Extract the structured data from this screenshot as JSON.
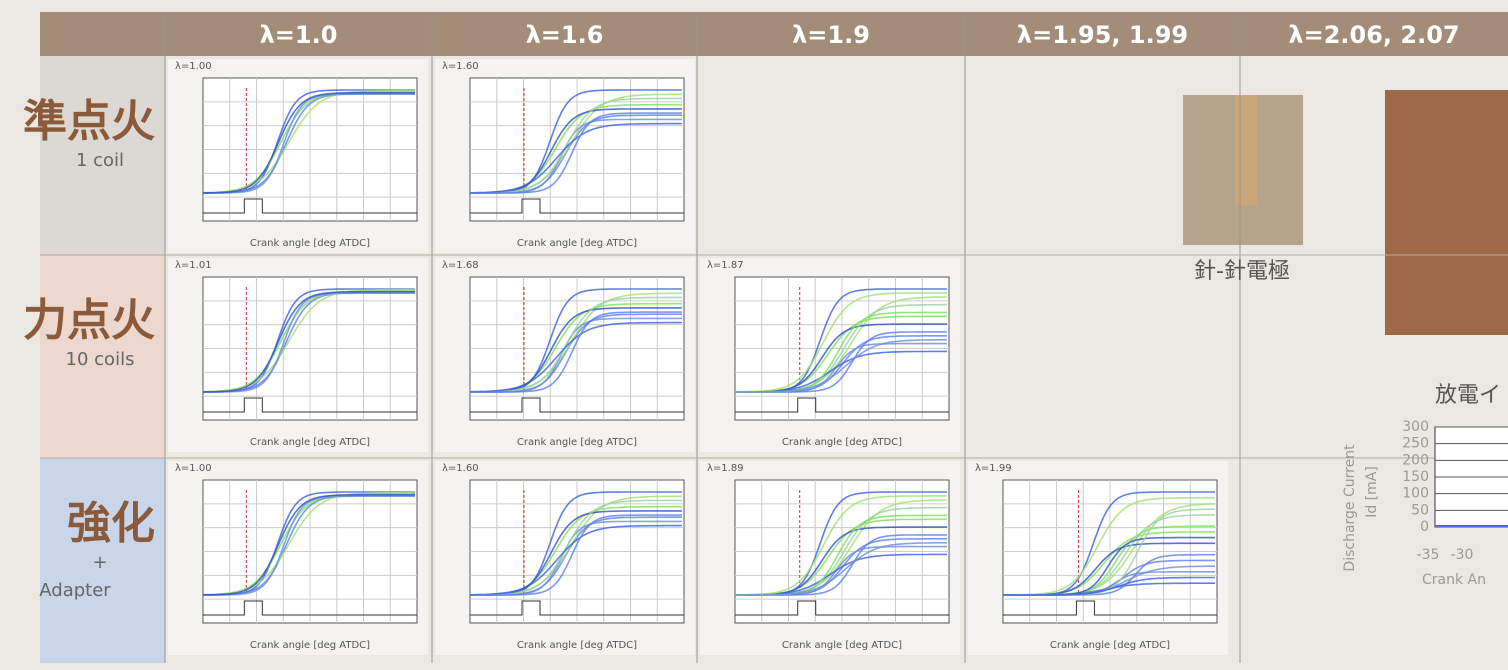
{
  "header": {
    "columns": [
      "λ=1.0",
      "λ=1.6",
      "λ=1.9",
      "λ=1.95, 1.99",
      "λ=2.06, 2.07"
    ]
  },
  "rows": [
    {
      "label": "準点火",
      "sublabel": "1 coil",
      "panels": [
        "λ=1.00",
        "λ=1.60",
        null,
        null
      ]
    },
    {
      "label": "力点火",
      "sublabel": "10 coils",
      "panels": [
        "λ=1.01",
        "λ=1.68",
        "λ=1.87",
        null
      ]
    },
    {
      "label": "強化",
      "sublabel": "+",
      "sublabel2": "Adapter",
      "panels": [
        "λ=1.00",
        "λ=1.60",
        "λ=1.89",
        "λ=1.99"
      ]
    }
  ],
  "panel_x_label": "Crank angle [deg ATDC]",
  "electrode": {
    "caption": "針-針電極"
  },
  "discharge": {
    "title": "放電イ",
    "y_label": "Discharge Current",
    "y_unit": "Id [mA]",
    "ylim": [
      0,
      300
    ],
    "yticks": [
      300,
      250,
      200,
      150,
      100,
      50,
      0
    ],
    "xticks": [
      "-35",
      "-30"
    ],
    "x_label": "Crank An"
  }
}
